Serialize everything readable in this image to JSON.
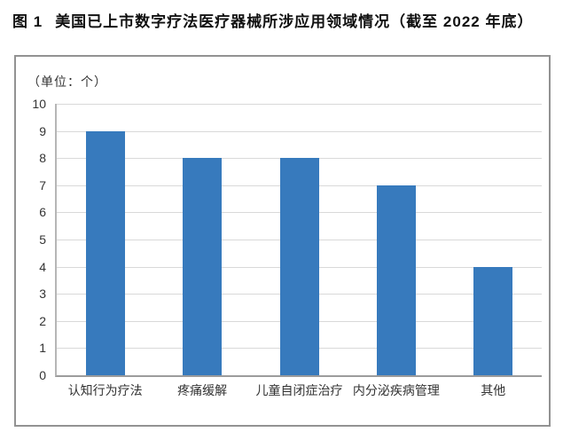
{
  "figure": {
    "label": "图 1",
    "title": "美国已上市数字疗法医疗器械所涉应用领域情况（截至 2022 年底）"
  },
  "chart_data": {
    "type": "bar",
    "title": "美国已上市数字疗法医疗器械所涉应用领域情况（截至 2022 年底）",
    "unit_label": "（单位：个）",
    "categories": [
      "认知行为疗法",
      "疼痛缓解",
      "儿童自闭症治疗",
      "内分泌疾病管理",
      "其他"
    ],
    "values": [
      9,
      8,
      8,
      7,
      4
    ],
    "xlabel": "",
    "ylabel": "",
    "ylim": [
      0,
      10
    ],
    "yticks": [
      0,
      1,
      2,
      3,
      4,
      5,
      6,
      7,
      8,
      9,
      10
    ],
    "grid": true,
    "legend_position": "none",
    "bar_color": "#377ABD",
    "gridline_color": "#D9D9D9",
    "axis_color": "#9C9C9C",
    "panel_border_color": "#929292"
  }
}
